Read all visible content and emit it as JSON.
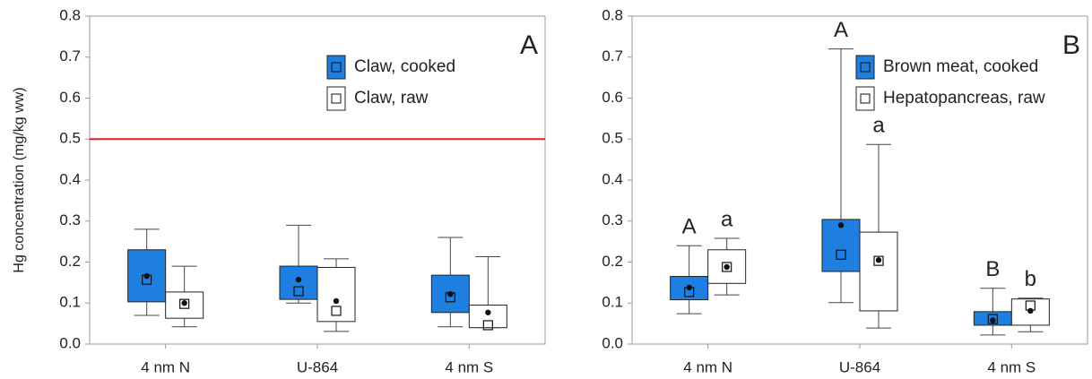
{
  "chart_data": [
    {
      "type": "box",
      "panel_label": "A",
      "y_label": "Hg concentration (mg/kg ww)",
      "categories": [
        "4 nm N",
        "U-864",
        "4 nm S"
      ],
      "ylim": [
        0,
        0.8
      ],
      "yticks": [
        {
          "value": 0,
          "label": "0.0"
        },
        0.1,
        0.2,
        0.3,
        0.4,
        0.5,
        0.6,
        0.7,
        0.8
      ],
      "reference_line": {
        "value": 0.5,
        "color": "#e02020"
      },
      "legend": "upper right",
      "series": [
        {
          "name": "Claw, cooked",
          "color": "#1f7fe0",
          "whisker_low": [
            0.07,
            0.1,
            0.042
          ],
          "q1": [
            0.103,
            0.109,
            0.077
          ],
          "median": [
            0.157,
            0.129,
            0.114
          ],
          "q3": [
            0.23,
            0.19,
            0.168
          ],
          "whisker_high": [
            0.28,
            0.29,
            0.26
          ],
          "mean": [
            0.166,
            0.157,
            0.122
          ]
        },
        {
          "name": "Claw, raw",
          "color": "#ffffff",
          "whisker_low": [
            0.042,
            0.031,
            0.04
          ],
          "q1": [
            0.063,
            0.055,
            0.04
          ],
          "median": [
            0.098,
            0.081,
            0.046
          ],
          "q3": [
            0.127,
            0.187,
            0.095
          ],
          "whisker_high": [
            0.19,
            0.208,
            0.213
          ],
          "mean": [
            0.1,
            0.105,
            0.077
          ]
        }
      ]
    },
    {
      "type": "box",
      "panel_label": "B",
      "categories": [
        "4 nm N",
        "U-864",
        "4 nm S"
      ],
      "ylim": [
        0,
        0.8
      ],
      "yticks": [
        {
          "value": 0,
          "label": "0.0"
        },
        0.1,
        0.2,
        0.3,
        0.4,
        0.5,
        0.6,
        0.7,
        0.8
      ],
      "legend": "upper right",
      "series": [
        {
          "name": "Brown meat, cooked",
          "color": "#1f7fe0",
          "whisker_low": [
            0.074,
            0.101,
            0.022
          ],
          "q1": [
            0.108,
            0.177,
            0.046
          ],
          "median": [
            0.127,
            0.218,
            0.061
          ],
          "q3": [
            0.165,
            0.304,
            0.079
          ],
          "whisker_high": [
            0.24,
            0.72,
            0.136
          ],
          "mean": [
            0.138,
            0.29,
            0.058
          ],
          "group_labels": [
            "A",
            "A",
            "B"
          ]
        },
        {
          "name": "Hepatopancreas, raw",
          "color": "#ffffff",
          "whisker_low": [
            0.12,
            0.039,
            0.03
          ],
          "q1": [
            0.148,
            0.081,
            0.046
          ],
          "median": [
            0.188,
            0.203,
            0.094
          ],
          "q3": [
            0.23,
            0.273,
            0.11
          ],
          "whisker_high": [
            0.258,
            0.487,
            0.112
          ],
          "mean": [
            0.188,
            0.205,
            0.081
          ],
          "group_labels": [
            "a",
            "a",
            "b"
          ]
        }
      ]
    }
  ]
}
